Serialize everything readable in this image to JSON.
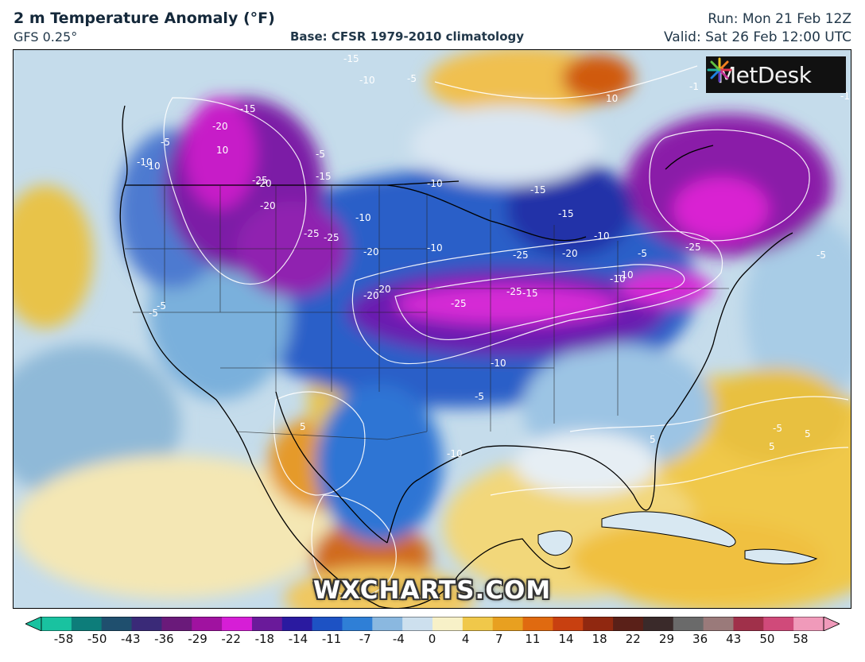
{
  "header": {
    "title": "2 m Temperature Anomaly (°F)",
    "model": "GFS 0.25°",
    "base": "Base: CFSR 1979-2010 climatology",
    "run": "Run: Mon 21 Feb 12Z",
    "valid": "Valid: Sat 26 Feb 12:00 UTC"
  },
  "logo": {
    "text": "MetDesk"
  },
  "watermark": "WXCHARTS.COM",
  "contour_labels": [
    "-15",
    "-10",
    "-5",
    "-5",
    "10",
    "-1",
    "-15",
    "-20",
    "-15",
    "-10",
    "-5",
    "-10",
    "-20",
    "-25",
    "-25",
    "-10",
    "-20",
    "-25",
    "-20",
    "-15",
    "-10",
    "-15",
    "-15",
    "-10",
    "-20",
    "-5",
    "-25",
    "-10",
    "-25",
    "-5",
    "-10",
    "-20",
    "-15",
    "-20",
    "-25",
    "-25",
    "-10",
    "-10",
    "-5",
    "-5",
    "-10",
    "5",
    "5",
    "-5",
    "5",
    "5",
    "-5",
    "10"
  ],
  "colorbar": {
    "ticks": [
      "-58",
      "-50",
      "-43",
      "-36",
      "-29",
      "-22",
      "-18",
      "-14",
      "-11",
      "-7",
      "-4",
      "0",
      "4",
      "7",
      "11",
      "14",
      "18",
      "22",
      "29",
      "36",
      "43",
      "50",
      "58"
    ],
    "colors": [
      "#19c2a0",
      "#0d7d7a",
      "#1f4f6e",
      "#3a2a78",
      "#6a1a7a",
      "#a012a0",
      "#d61ed6",
      "#6a1a9a",
      "#2a1aa0",
      "#1d52c4",
      "#2f7fd6",
      "#8ab8e0",
      "#cde0ee",
      "#f7f1c8",
      "#f0c84a",
      "#e8a020",
      "#e06a10",
      "#c84010",
      "#902810",
      "#5a2018",
      "#3a2a2a",
      "#6a6a6a",
      "#9a7a7a",
      "#a0304a",
      "#d04a7a",
      "#f09aba"
    ]
  }
}
